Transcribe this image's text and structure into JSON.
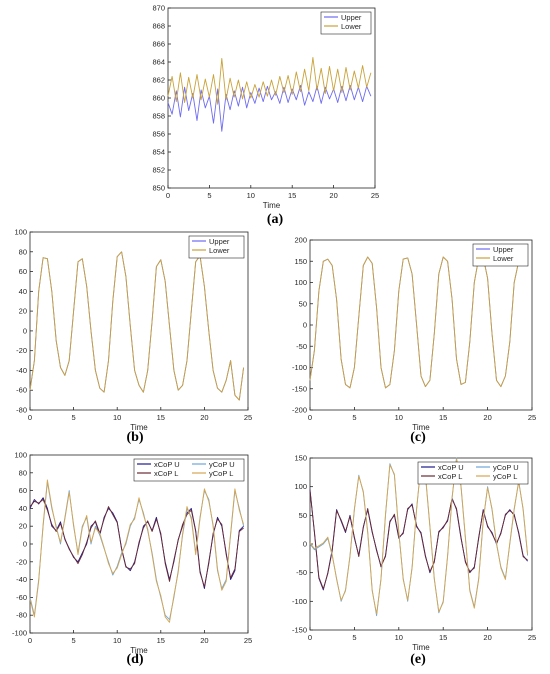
{
  "panel_labels": [
    "(a)",
    "(b)",
    "(c)",
    "(d)",
    "(e)"
  ],
  "colors": {
    "upper": "#6f6cf0",
    "lower": "#c9a23a",
    "xcop_u": "#1f1a8c",
    "ycop_u": "#6ea6d8",
    "xcop_l": "#6b2a32",
    "ycop_l": "#d6a550"
  },
  "chart_data": [
    {
      "panel": "(a)",
      "type": "line",
      "xlabel": "Time",
      "ylabel": "",
      "xlim": [
        0,
        25
      ],
      "ylim": [
        850,
        870
      ],
      "xticks": [
        0,
        5,
        10,
        15,
        20,
        25
      ],
      "yticks": [
        850,
        852,
        854,
        856,
        858,
        860,
        862,
        864,
        866,
        868,
        870
      ],
      "legend": "top-right",
      "x": [
        0,
        0.5,
        1,
        1.5,
        2,
        2.5,
        3,
        3.5,
        4,
        4.5,
        5,
        5.5,
        6,
        6.5,
        7,
        7.5,
        8,
        8.5,
        9,
        9.5,
        10,
        10.5,
        11,
        11.5,
        12,
        12.5,
        13,
        13.5,
        14,
        14.5,
        15,
        15.5,
        16,
        16.5,
        17,
        17.5,
        18,
        18.5,
        19,
        19.5,
        20,
        20.5,
        21,
        21.5,
        22,
        22.5,
        23,
        23.5,
        24,
        24.5
      ],
      "series": [
        {
          "name": "Upper",
          "color_key": "upper",
          "values": [
            859.5,
            858.2,
            860.8,
            857.9,
            861.2,
            858.6,
            860.5,
            857.5,
            860.9,
            858.9,
            860.2,
            857.2,
            861.0,
            856.3,
            860.4,
            858.7,
            860.8,
            859.1,
            861.2,
            858.9,
            860.6,
            859.4,
            861.1,
            859.6,
            861.3,
            859.8,
            860.7,
            859.4,
            861.2,
            859.5,
            861.0,
            859.8,
            861.4,
            859.2,
            860.7,
            859.6,
            861.3,
            859.4,
            861.2,
            859.9,
            861.0,
            859.5,
            861.3,
            859.7,
            861.4,
            859.8,
            861.2,
            859.6,
            861.3,
            860.2
          ]
        },
        {
          "name": "Lower",
          "color_key": "lower",
          "values": [
            860.2,
            862.4,
            859.6,
            862.8,
            859.5,
            862.3,
            860.0,
            862.6,
            859.8,
            862.1,
            860.1,
            862.6,
            859.3,
            864.4,
            859.8,
            862.2,
            860.1,
            862.0,
            859.9,
            861.8,
            860.0,
            861.5,
            860.1,
            861.8,
            860.2,
            862.0,
            860.3,
            862.4,
            860.6,
            862.5,
            860.4,
            862.9,
            860.7,
            863.2,
            860.8,
            864.5,
            860.9,
            863.3,
            860.5,
            863.5,
            860.8,
            863.2,
            860.6,
            863.4,
            860.9,
            863.0,
            861.1,
            863.6,
            861.2,
            862.8
          ]
        }
      ]
    },
    {
      "panel": "(b)",
      "type": "line",
      "xlabel": "Time",
      "ylabel": "",
      "xlim": [
        0,
        25
      ],
      "ylim": [
        -80,
        100
      ],
      "xticks": [
        0,
        5,
        10,
        15,
        20,
        25
      ],
      "yticks": [
        -80,
        -60,
        -40,
        -20,
        0,
        20,
        40,
        60,
        80,
        100
      ],
      "legend": "top-right",
      "x": [
        0,
        0.5,
        1,
        1.5,
        2,
        2.5,
        3,
        3.5,
        4,
        4.5,
        5,
        5.5,
        6,
        6.5,
        7,
        7.5,
        8,
        8.5,
        9,
        9.5,
        10,
        10.5,
        11,
        11.5,
        12,
        12.5,
        13,
        13.5,
        14,
        14.5,
        15,
        15.5,
        16,
        16.5,
        17,
        17.5,
        18,
        18.5,
        19,
        19.5,
        20,
        20.5,
        21,
        21.5,
        22,
        22.5,
        23,
        23.5,
        24,
        24.5
      ],
      "series": [
        {
          "name": "Upper",
          "color_key": "upper",
          "values": [
            -60,
            -30,
            40,
            74,
            73,
            40,
            -10,
            -37,
            -45,
            -30,
            20,
            70,
            73,
            45,
            0,
            -40,
            -58,
            -62,
            -30,
            30,
            75,
            80,
            55,
            5,
            -40,
            -55,
            -62,
            -40,
            10,
            65,
            72,
            50,
            5,
            -40,
            -60,
            -55,
            -30,
            20,
            70,
            76,
            45,
            0,
            -40,
            -58,
            -62,
            -50,
            -30,
            -65,
            -70,
            -37
          ]
        },
        {
          "name": "Lower",
          "color_key": "lower",
          "values": [
            -60,
            -30,
            40,
            74,
            73,
            40,
            -10,
            -37,
            -45,
            -30,
            20,
            70,
            73,
            45,
            0,
            -40,
            -58,
            -62,
            -30,
            30,
            75,
            80,
            55,
            5,
            -40,
            -55,
            -62,
            -40,
            10,
            65,
            72,
            50,
            5,
            -40,
            -60,
            -55,
            -30,
            20,
            70,
            76,
            45,
            0,
            -40,
            -58,
            -62,
            -50,
            -30,
            -65,
            -70,
            -37
          ]
        }
      ]
    },
    {
      "panel": "(c)",
      "type": "line",
      "xlabel": "Time",
      "ylabel": "",
      "xlim": [
        0,
        25
      ],
      "ylim": [
        -200,
        200
      ],
      "xticks": [
        0,
        5,
        10,
        15,
        20,
        25
      ],
      "yticks": [
        -200,
        -150,
        -100,
        -50,
        0,
        50,
        100,
        150,
        200
      ],
      "legend": "top-right",
      "x": [
        0,
        0.5,
        1,
        1.5,
        2,
        2.5,
        3,
        3.5,
        4,
        4.5,
        5,
        5.5,
        6,
        6.5,
        7,
        7.5,
        8,
        8.5,
        9,
        9.5,
        10,
        10.5,
        11,
        11.5,
        12,
        12.5,
        13,
        13.5,
        14,
        14.5,
        15,
        15.5,
        16,
        16.5,
        17,
        17.5,
        18,
        18.5,
        19,
        19.5,
        20,
        20.5,
        21,
        21.5,
        22,
        22.5,
        23,
        23.5,
        24,
        24.5
      ],
      "series": [
        {
          "name": "Upper",
          "color_key": "upper",
          "values": [
            -130,
            -60,
            80,
            150,
            155,
            140,
            60,
            -80,
            -140,
            -148,
            -100,
            20,
            140,
            160,
            145,
            40,
            -100,
            -148,
            -140,
            -60,
            80,
            155,
            158,
            120,
            0,
            -120,
            -145,
            -130,
            -20,
            120,
            160,
            150,
            60,
            -80,
            -140,
            -135,
            -40,
            100,
            158,
            160,
            110,
            -20,
            -130,
            -145,
            -120,
            -40,
            100,
            150,
            158,
            145
          ]
        },
        {
          "name": "Lower",
          "color_key": "lower",
          "values": [
            -130,
            -60,
            80,
            150,
            155,
            140,
            60,
            -80,
            -140,
            -148,
            -100,
            20,
            140,
            160,
            145,
            40,
            -100,
            -148,
            -140,
            -60,
            80,
            155,
            158,
            120,
            0,
            -120,
            -145,
            -130,
            -20,
            120,
            160,
            150,
            60,
            -80,
            -140,
            -135,
            -40,
            100,
            158,
            160,
            110,
            -20,
            -130,
            -145,
            -120,
            -40,
            100,
            150,
            158,
            145
          ]
        }
      ]
    },
    {
      "panel": "(d)",
      "type": "line",
      "xlabel": "Time",
      "ylabel": "",
      "xlim": [
        0,
        25
      ],
      "ylim": [
        -100,
        100
      ],
      "xticks": [
        0,
        5,
        10,
        15,
        20,
        25
      ],
      "yticks": [
        -100,
        -80,
        -60,
        -40,
        -20,
        0,
        20,
        40,
        60,
        80,
        100
      ],
      "legend": "top-right",
      "x": [
        0,
        0.5,
        1,
        1.5,
        2,
        2.5,
        3,
        3.5,
        4,
        4.5,
        5,
        5.5,
        6,
        6.5,
        7,
        7.5,
        8,
        8.5,
        9,
        9.5,
        10,
        10.5,
        11,
        11.5,
        12,
        12.5,
        13,
        13.5,
        14,
        14.5,
        15,
        15.5,
        16,
        16.5,
        17,
        17.5,
        18,
        18.5,
        19,
        19.5,
        20,
        20.5,
        21,
        21.5,
        22,
        22.5,
        23,
        23.5,
        24,
        24.5
      ],
      "series": [
        {
          "name": "xCoP U",
          "color_key": "xcop_u",
          "values": [
            40,
            50,
            45,
            52,
            40,
            20,
            15,
            25,
            5,
            -5,
            -15,
            -20,
            -10,
            0,
            20,
            25,
            10,
            30,
            40,
            35,
            25,
            -5,
            -25,
            -30,
            -20,
            0,
            20,
            25,
            15,
            30,
            10,
            -20,
            -40,
            -20,
            5,
            20,
            35,
            40,
            15,
            -30,
            -50,
            -20,
            10,
            30,
            20,
            -10,
            -40,
            -30,
            15,
            20
          ]
        },
        {
          "name": "xCoP L",
          "color_key": "xcop_l",
          "values": [
            42,
            48,
            46,
            50,
            38,
            22,
            14,
            23,
            6,
            -6,
            -14,
            -22,
            -12,
            2,
            18,
            26,
            12,
            28,
            42,
            33,
            24,
            -6,
            -26,
            -28,
            -22,
            2,
            18,
            26,
            14,
            28,
            12,
            -22,
            -42,
            -18,
            4,
            22,
            33,
            38,
            14,
            -32,
            -48,
            -22,
            12,
            28,
            22,
            -12,
            -38,
            -28,
            14,
            18
          ]
        },
        {
          "name": "yCoP U",
          "color_key": "ycop_u",
          "values": [
            -60,
            -80,
            -40,
            20,
            70,
            40,
            20,
            0,
            30,
            60,
            20,
            -10,
            20,
            30,
            0,
            20,
            10,
            -5,
            -20,
            -35,
            -25,
            -10,
            0,
            20,
            30,
            50,
            35,
            15,
            -10,
            -40,
            -60,
            -80,
            -85,
            -60,
            -30,
            10,
            40,
            30,
            -10,
            30,
            60,
            50,
            20,
            -30,
            -50,
            -40,
            10,
            60,
            40,
            20
          ]
        },
        {
          "name": "yCoP L",
          "color_key": "ycop_l",
          "values": [
            -62,
            -82,
            -42,
            22,
            72,
            42,
            18,
            2,
            28,
            58,
            22,
            -12,
            18,
            32,
            2,
            18,
            12,
            -4,
            -22,
            -33,
            -27,
            -12,
            2,
            22,
            28,
            52,
            33,
            17,
            -12,
            -42,
            -58,
            -82,
            -88,
            -58,
            -32,
            12,
            42,
            28,
            -12,
            28,
            62,
            48,
            22,
            -28,
            -52,
            -42,
            12,
            62,
            38,
            22
          ]
        }
      ]
    },
    {
      "panel": "(e)",
      "type": "line",
      "xlabel": "Time",
      "ylabel": "",
      "xlim": [
        0,
        25
      ],
      "ylim": [
        -150,
        150
      ],
      "xticks": [
        0,
        5,
        10,
        15,
        20,
        25
      ],
      "yticks": [
        -150,
        -100,
        -50,
        0,
        50,
        100,
        150
      ],
      "legend": "top-right",
      "x": [
        0,
        0.5,
        1,
        1.5,
        2,
        2.5,
        3,
        3.5,
        4,
        4.5,
        5,
        5.5,
        6,
        6.5,
        7,
        7.5,
        8,
        8.5,
        9,
        9.5,
        10,
        10.5,
        11,
        11.5,
        12,
        12.5,
        13,
        13.5,
        14,
        14.5,
        15,
        15.5,
        16,
        16.5,
        17,
        17.5,
        18,
        18.5,
        19,
        19.5,
        20,
        20.5,
        21,
        21.5,
        22,
        22.5,
        23,
        23.5,
        24,
        24.5
      ],
      "series": [
        {
          "name": "xCoP U",
          "color_key": "xcop_u",
          "values": [
            95,
            20,
            -60,
            -80,
            -50,
            -10,
            60,
            40,
            20,
            50,
            10,
            -20,
            30,
            60,
            20,
            -10,
            -40,
            -20,
            40,
            50,
            10,
            20,
            60,
            70,
            30,
            20,
            -20,
            -50,
            -30,
            20,
            30,
            40,
            80,
            60,
            10,
            -30,
            -50,
            -40,
            10,
            60,
            30,
            20,
            0,
            20,
            50,
            60,
            50,
            20,
            -20,
            -30
          ]
        },
        {
          "name": "xCoP L",
          "color_key": "xcop_l",
          "values": [
            93,
            22,
            -58,
            -78,
            -52,
            -12,
            58,
            42,
            22,
            48,
            12,
            -22,
            28,
            62,
            22,
            -12,
            -38,
            -22,
            38,
            52,
            12,
            18,
            62,
            68,
            32,
            18,
            -22,
            -48,
            -32,
            22,
            28,
            42,
            78,
            62,
            12,
            -32,
            -48,
            -42,
            12,
            58,
            32,
            18,
            2,
            18,
            52,
            58,
            52,
            18,
            -22,
            -28
          ]
        },
        {
          "name": "yCoP U",
          "color_key": "ycop_u",
          "values": [
            0,
            -10,
            -5,
            0,
            10,
            -20,
            -60,
            -100,
            -80,
            -20,
            60,
            120,
            90,
            20,
            -80,
            -125,
            -60,
            50,
            140,
            120,
            20,
            -60,
            -100,
            -40,
            60,
            140,
            120,
            30,
            -60,
            -120,
            -100,
            -20,
            80,
            150,
            100,
            10,
            -80,
            -110,
            -60,
            40,
            100,
            60,
            0,
            -40,
            -60,
            0,
            60,
            110,
            60,
            -20
          ]
        },
        {
          "name": "yCoP L",
          "color_key": "ycop_l",
          "values": [
            2,
            -8,
            -3,
            2,
            12,
            -18,
            -62,
            -98,
            -82,
            -22,
            62,
            118,
            92,
            22,
            -82,
            -122,
            -62,
            52,
            138,
            122,
            22,
            -62,
            -98,
            -42,
            62,
            138,
            122,
            32,
            -62,
            -118,
            -102,
            -22,
            82,
            148,
            102,
            12,
            -82,
            -112,
            -62,
            42,
            98,
            62,
            2,
            -42,
            -62,
            2,
            62,
            108,
            62,
            -18
          ]
        }
      ]
    }
  ]
}
